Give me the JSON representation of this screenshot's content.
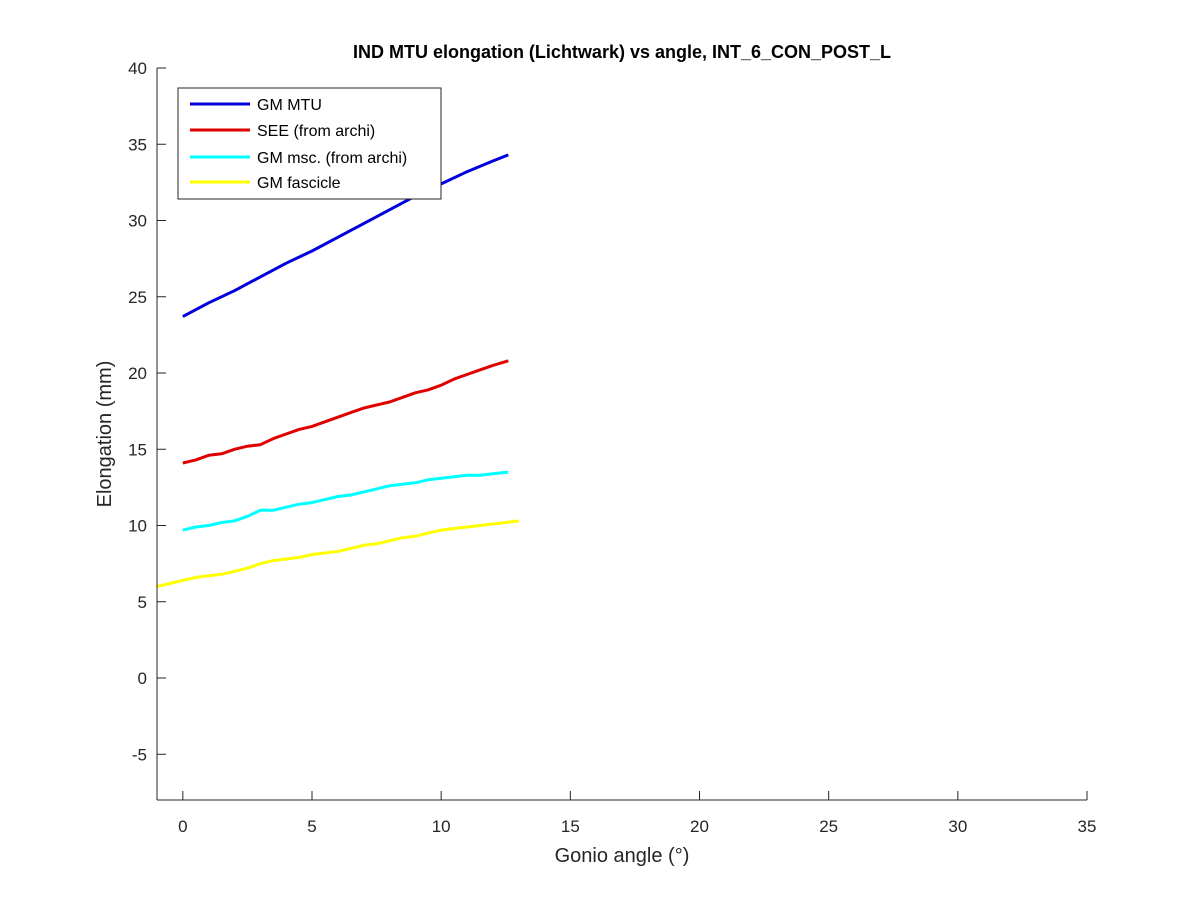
{
  "chart_data": {
    "type": "line",
    "title": "IND MTU elongation (Lichtwark) vs angle, INT_6_CON_POST_L",
    "xlabel": "Gonio angle (°)",
    "ylabel": "Elongation (mm)",
    "xlim": [
      -1,
      35
    ],
    "ylim": [
      -8,
      40
    ],
    "xticks": [
      0,
      5,
      10,
      15,
      20,
      25,
      30,
      35
    ],
    "yticks": [
      -5,
      0,
      5,
      10,
      15,
      20,
      25,
      30,
      35,
      40
    ],
    "grid": false,
    "legend_position": "top-left",
    "series": [
      {
        "name": "GM MTU",
        "color": "#0000dd",
        "x": [
          0,
          1,
          2,
          3,
          4,
          5,
          6,
          7,
          8,
          9,
          10,
          11,
          12,
          12.6
        ],
        "y": [
          23.7,
          24.6,
          25.4,
          26.3,
          27.2,
          28.0,
          28.9,
          29.8,
          30.7,
          31.6,
          32.4,
          33.2,
          33.9,
          34.3
        ]
      },
      {
        "name": "SEE (from archi)",
        "color": "#e00000",
        "x": [
          0,
          0.5,
          1,
          1.5,
          2,
          2.5,
          3,
          3.5,
          4,
          4.5,
          5,
          5.5,
          6,
          6.5,
          7,
          7.5,
          8,
          8.5,
          9,
          9.5,
          10,
          10.5,
          11,
          11.5,
          12,
          12.6
        ],
        "y": [
          14.1,
          14.3,
          14.6,
          14.7,
          15.0,
          15.2,
          15.3,
          15.7,
          16.0,
          16.3,
          16.5,
          16.8,
          17.1,
          17.4,
          17.7,
          17.9,
          18.1,
          18.4,
          18.7,
          18.9,
          19.2,
          19.6,
          19.9,
          20.2,
          20.5,
          20.8
        ]
      },
      {
        "name": "GM msc. (from archi)",
        "color": "#00ffff",
        "x": [
          0,
          0.5,
          1,
          1.5,
          2,
          2.5,
          3,
          3.5,
          4,
          4.5,
          5,
          5.5,
          6,
          6.5,
          7,
          7.5,
          8,
          8.5,
          9,
          9.5,
          10,
          10.5,
          11,
          11.5,
          12,
          12.6
        ],
        "y": [
          9.7,
          9.9,
          10.0,
          10.2,
          10.3,
          10.6,
          11.0,
          11.0,
          11.2,
          11.4,
          11.5,
          11.7,
          11.9,
          12.0,
          12.2,
          12.4,
          12.6,
          12.7,
          12.8,
          13.0,
          13.1,
          13.2,
          13.3,
          13.3,
          13.4,
          13.5
        ]
      },
      {
        "name": "GM fascicle",
        "color": "#ffff00",
        "x": [
          -1,
          -0.5,
          0,
          0.5,
          1,
          1.5,
          2,
          2.5,
          3,
          3.5,
          4,
          4.5,
          5,
          5.5,
          6,
          6.5,
          7,
          7.5,
          8,
          8.5,
          9,
          9.5,
          10,
          10.5,
          11,
          11.5,
          12,
          12.5,
          13
        ],
        "y": [
          6.0,
          6.2,
          6.4,
          6.6,
          6.7,
          6.8,
          7.0,
          7.2,
          7.5,
          7.7,
          7.8,
          7.9,
          8.1,
          8.2,
          8.3,
          8.5,
          8.7,
          8.8,
          9.0,
          9.2,
          9.3,
          9.5,
          9.7,
          9.8,
          9.9,
          10.0,
          10.1,
          10.2,
          10.3
        ]
      }
    ]
  }
}
